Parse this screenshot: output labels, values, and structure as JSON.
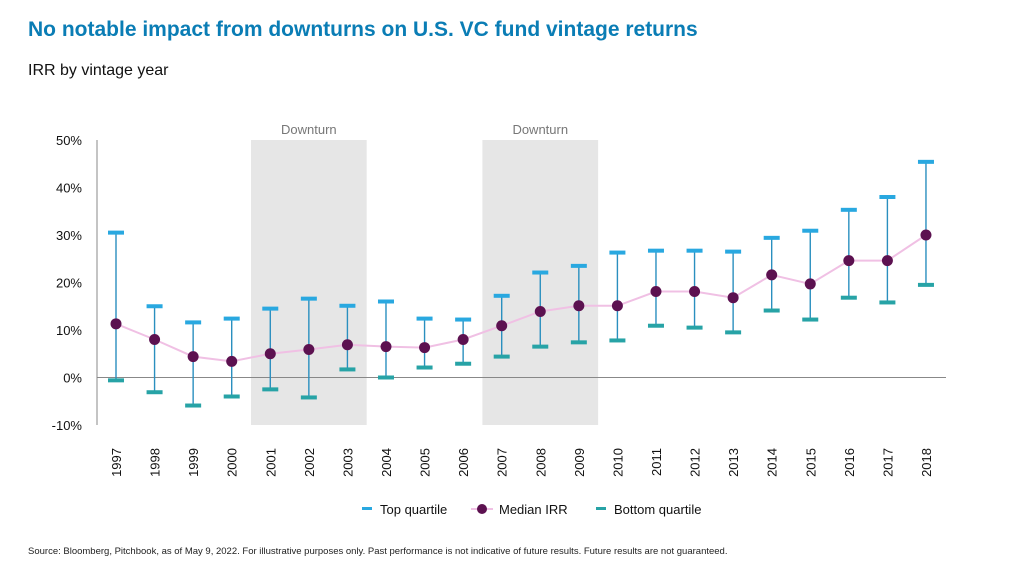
{
  "title": "No notable impact from downturns on U.S. VC fund vintage returns",
  "subtitle": "IRR by vintage year",
  "source": "Source: Bloomberg, Pitchbook, as of May 9, 2022. For illustrative purposes only. Past performance is not indicative of future results. Future results are not guaranteed.",
  "chart_data": {
    "type": "line",
    "categories": [
      "1997",
      "1998",
      "1999",
      "2000",
      "2001",
      "2002",
      "2003",
      "2004",
      "2005",
      "2006",
      "2007",
      "2008",
      "2009",
      "2010",
      "2011",
      "2012",
      "2013",
      "2014",
      "2015",
      "2016",
      "2017",
      "2018"
    ],
    "series": [
      {
        "name": "Top quartile",
        "values": [
          30.5,
          15.0,
          11.6,
          12.4,
          14.5,
          16.6,
          15.1,
          16.0,
          12.4,
          12.2,
          17.2,
          22.1,
          23.5,
          26.3,
          26.7,
          26.7,
          26.5,
          29.4,
          30.9,
          35.3,
          38.0,
          45.4
        ],
        "color": "#29a8e0"
      },
      {
        "name": "Median IRR",
        "values": [
          11.3,
          8.0,
          4.4,
          3.4,
          5.0,
          5.9,
          6.9,
          6.5,
          6.3,
          8.0,
          10.9,
          13.9,
          15.1,
          15.1,
          18.1,
          18.1,
          16.8,
          21.6,
          19.7,
          24.6,
          24.6,
          30.0
        ],
        "color": "#5c1150",
        "line_color": "#f0c0e4"
      },
      {
        "name": "Bottom quartile",
        "values": [
          -0.6,
          -3.1,
          -5.9,
          -4.0,
          -2.5,
          -4.2,
          1.7,
          0.0,
          2.1,
          2.9,
          4.4,
          6.5,
          7.4,
          7.8,
          10.9,
          10.5,
          9.5,
          14.1,
          12.2,
          16.8,
          15.8,
          19.5
        ],
        "color": "#27a3a6"
      }
    ],
    "yticks": [
      "50%",
      "40%",
      "30%",
      "20%",
      "10%",
      "0%",
      "-10%"
    ],
    "ylim": [
      -10,
      50
    ],
    "negative_tick_color": "#e8191f",
    "shaded_regions": [
      {
        "label": "Downturn",
        "from": "2001",
        "to": "2003"
      },
      {
        "label": "Downturn",
        "from": "2007",
        "to": "2009"
      }
    ],
    "legend_position": "bottom",
    "grid": false
  }
}
